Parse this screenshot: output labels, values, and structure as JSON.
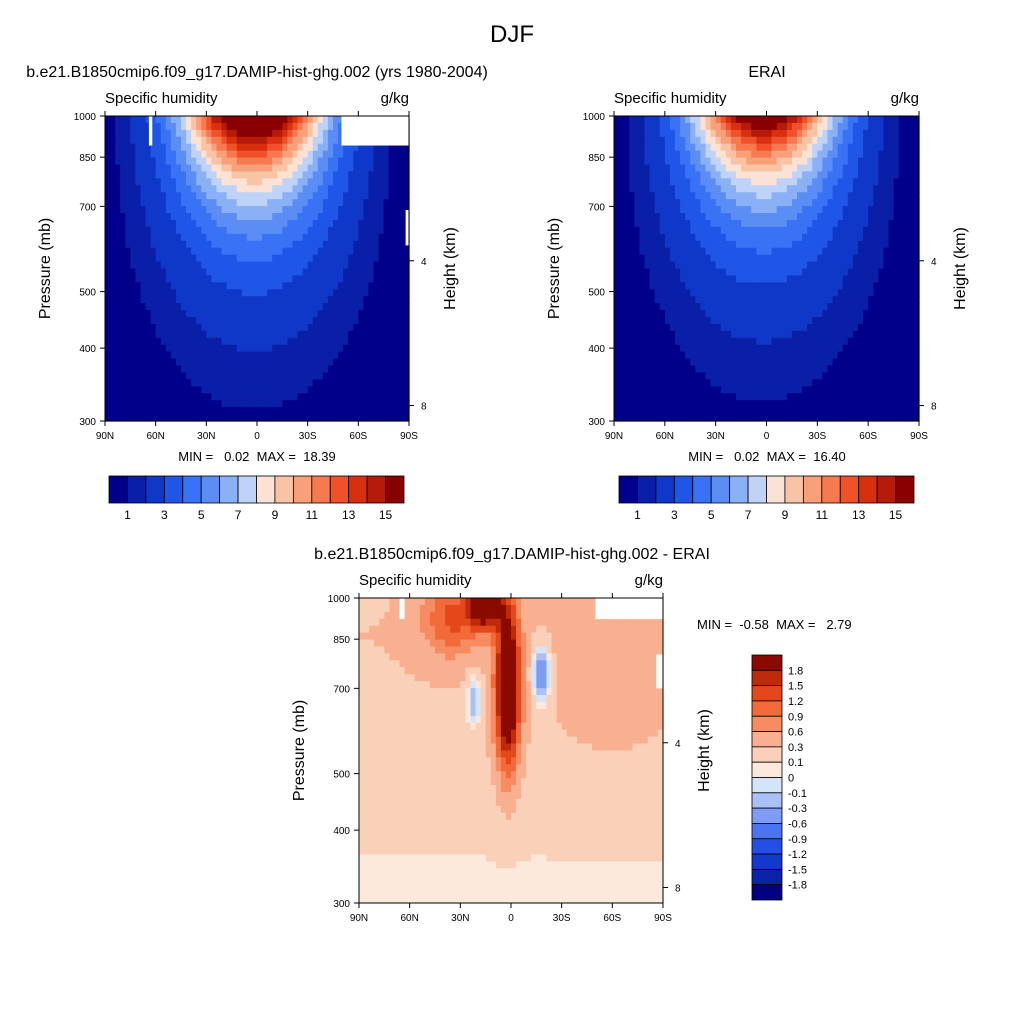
{
  "page_title": "DJF",
  "colors": {
    "levels_abs": [
      "#00008a",
      "#0a1fa8",
      "#0f38c8",
      "#1f56e8",
      "#3a72f5",
      "#5b8df5",
      "#8ab0f5",
      "#bed3f7",
      "#fbe2d4",
      "#f9c3a5",
      "#f7a07a",
      "#f57a50",
      "#f0502a",
      "#d8300f",
      "#b51a0a",
      "#8a0000"
    ],
    "levels_diff": [
      "#000080",
      "#0a22a8",
      "#1238cc",
      "#2250e6",
      "#4a74f2",
      "#7c9cf5",
      "#a8c2f7",
      "#d4e4f9",
      "#fde9dc",
      "#fbd0b8",
      "#f9b090",
      "#f78c62",
      "#f26a3a",
      "#e4481a",
      "#c02a0a",
      "#8b0a00"
    ],
    "missing": "#ffffff"
  },
  "chart_data": [
    {
      "type": "heatmap",
      "title": "b.e21.B1850cmip6.f09_g17.DAMIP-hist-ghg.002 (yrs 1980-2004)",
      "left_string": "Specific humidity",
      "right_string": "g/kg",
      "ylabel": "Pressure (mb)",
      "ylabel_right": "Height (km)",
      "x_ticks": [
        "90N",
        "60N",
        "30N",
        "0",
        "30S",
        "60S",
        "90S"
      ],
      "y_ticks": [
        "300",
        "400",
        "500",
        "700",
        "850",
        "1000"
      ],
      "y_ticks_right": [
        "8",
        "4"
      ],
      "xlim": [
        90,
        -90
      ],
      "ylim": [
        1000,
        300
      ],
      "log_pressure": true,
      "stats": "MIN =   0.02  MAX =  18.39",
      "peak_value": 18.39,
      "peak_lat": 2,
      "colorbar_labels": [
        "1",
        "3",
        "5",
        "7",
        "9",
        "11",
        "13",
        "15"
      ],
      "contour_levels": [
        0.5,
        1,
        2,
        3,
        4,
        5,
        6,
        7,
        8,
        9,
        10,
        11,
        12,
        13,
        14,
        15
      ]
    },
    {
      "type": "heatmap",
      "title": "ERAI",
      "left_string": "Specific humidity",
      "right_string": "g/kg",
      "ylabel": "Pressure (mb)",
      "ylabel_right": "Height (km)",
      "x_ticks": [
        "90N",
        "60N",
        "30N",
        "0",
        "30S",
        "60S",
        "90S"
      ],
      "y_ticks": [
        "300",
        "400",
        "500",
        "700",
        "850",
        "1000"
      ],
      "y_ticks_right": [
        "8",
        "4"
      ],
      "xlim": [
        90,
        -90
      ],
      "ylim": [
        1000,
        300
      ],
      "log_pressure": true,
      "stats": "MIN =   0.02  MAX =  16.40",
      "peak_value": 16.4,
      "peak_lat": 2,
      "colorbar_labels": [
        "1",
        "3",
        "5",
        "7",
        "9",
        "11",
        "13",
        "15"
      ],
      "contour_levels": [
        0.5,
        1,
        2,
        3,
        4,
        5,
        6,
        7,
        8,
        9,
        10,
        11,
        12,
        13,
        14,
        15
      ]
    },
    {
      "type": "heatmap",
      "title": "b.e21.B1850cmip6.f09_g17.DAMIP-hist-ghg.002 - ERAI",
      "left_string": "Specific humidity",
      "right_string": "g/kg",
      "ylabel": "Pressure (mb)",
      "ylabel_right": "Height (km)",
      "x_ticks": [
        "90N",
        "60N",
        "30N",
        "0",
        "30S",
        "60S",
        "90S"
      ],
      "y_ticks": [
        "300",
        "400",
        "500",
        "700",
        "850",
        "1000"
      ],
      "y_ticks_right": [
        "8",
        "4"
      ],
      "xlim": [
        90,
        -90
      ],
      "ylim": [
        1000,
        300
      ],
      "log_pressure": true,
      "stats": "MIN =  -0.58  MAX =   2.79",
      "colorbar_labels": [
        "1.8",
        "1.5",
        "1.2",
        "0.9",
        "0.6",
        "0.3",
        "0.1",
        "0",
        "-0.1",
        "-0.3",
        "-0.6",
        "-0.9",
        "-1.2",
        "-1.5",
        "-1.8"
      ],
      "contour_levels": [
        -1.8,
        -1.5,
        -1.2,
        -0.9,
        -0.6,
        -0.3,
        -0.1,
        0,
        0.1,
        0.3,
        0.6,
        0.9,
        1.2,
        1.5,
        1.8
      ]
    }
  ]
}
